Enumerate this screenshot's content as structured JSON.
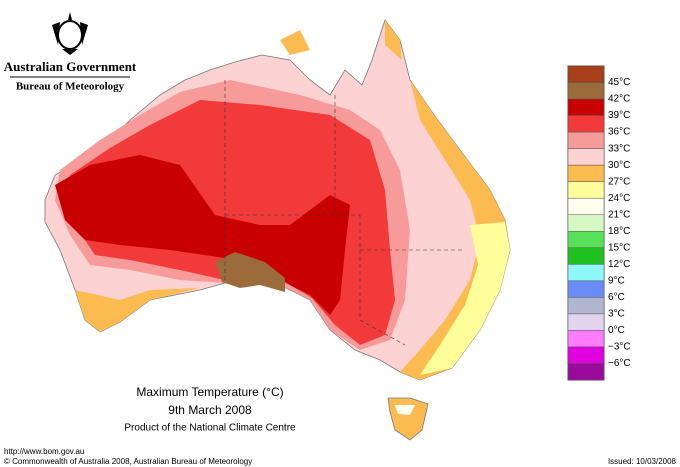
{
  "header": {
    "government": "Australian Government",
    "agency": "Bureau of Meteorology"
  },
  "map": {
    "title": "Maximum Temperature (°C)",
    "date": "9th March 2008",
    "subtitle": "Product of the National Climate Centre"
  },
  "legend": {
    "labels": [
      "45°C",
      "42°C",
      "39°C",
      "36°C",
      "33°C",
      "30°C",
      "27°C",
      "24°C",
      "21°C",
      "18°C",
      "15°C",
      "12°C",
      "9°C",
      "6°C",
      "3°C",
      "0°C",
      "−3°C",
      "−6°C"
    ],
    "colors": [
      "#a63f1a",
      "#9c6b3c",
      "#c80000",
      "#f23a3a",
      "#f79a9a",
      "#fcd2d2",
      "#fbbb50",
      "#fefe9a",
      "#fffff0",
      "#d7f8c4",
      "#58e058",
      "#20c020",
      "#8ef8f8",
      "#6a8cf8",
      "#b0b6d0",
      "#e2d4ee",
      "#ff7cff",
      "#e000e0",
      "#9a0a9a"
    ]
  },
  "footer": {
    "url": "http://www.bom.gov.au",
    "copyright": "© Commonwealth of Australia 2008, Australian Bureau of Meteorology",
    "issued": "Issued: 10/03/2008"
  }
}
